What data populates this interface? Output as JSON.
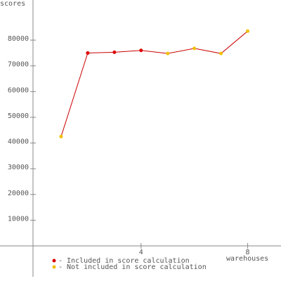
{
  "chart_data": {
    "type": "line",
    "y_label": "scores",
    "x_label": "warehouses",
    "x": [
      1,
      2,
      3,
      4,
      5,
      6,
      7,
      8
    ],
    "series": [
      {
        "values": [
          42500,
          75000,
          75300,
          76000,
          74800,
          76800,
          74800,
          83500
        ],
        "color": "#cc0000",
        "point_colors": [
          "#f0c000",
          "#dd0000",
          "#dd0000",
          "#dd0000",
          "#f0c000",
          "#f0c000",
          "#f0c000",
          "#f0c000"
        ]
      }
    ],
    "legend": [
      {
        "label": "- Included in score calculation",
        "color": "#dd0000"
      },
      {
        "label": "- Not included in score calculation",
        "color": "#f0c000"
      }
    ],
    "xlim": [
      0,
      9.25
    ],
    "xticks": [
      4,
      8
    ],
    "ylim": [
      -12000,
      95600
    ],
    "yticks": [
      10000,
      20000,
      30000,
      40000,
      50000,
      60000,
      70000,
      80000
    ]
  }
}
